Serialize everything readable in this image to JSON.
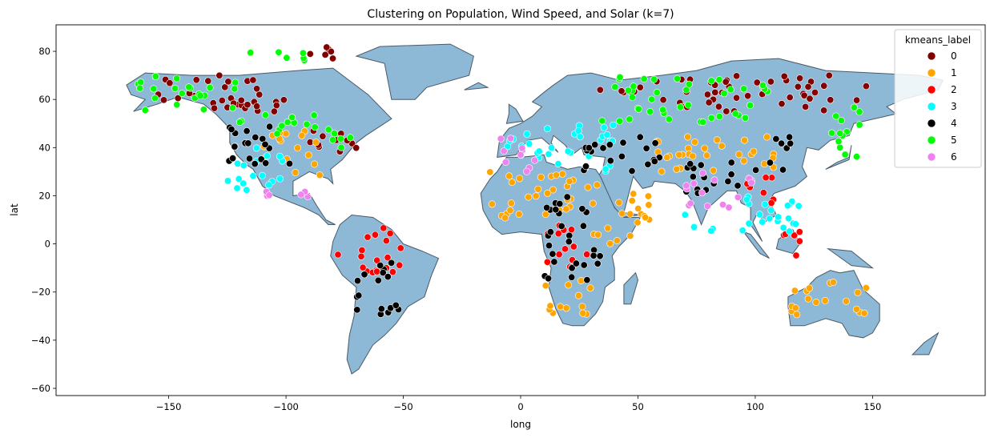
{
  "chart_data": {
    "type": "scatter",
    "title": "Clustering on Population, Wind Speed, and Solar (k=7)",
    "xlabel": "long",
    "ylabel": "lat",
    "xlim": [
      -198,
      198
    ],
    "ylim": [
      -63,
      91
    ],
    "xticks": [
      -150,
      -100,
      -50,
      0,
      50,
      100,
      150
    ],
    "yticks": [
      -60,
      -40,
      -20,
      0,
      20,
      40,
      60,
      80
    ],
    "grid": false,
    "legend": {
      "title": "kmeans_label",
      "placement": "top-right"
    },
    "map_fill": "#8db8d6",
    "map_edge": "#4a5a68",
    "clusters": [
      {
        "name": "0",
        "color": "#800000",
        "regions": [
          [
            -160,
            -110,
            55,
            70
          ],
          [
            -125,
            -95,
            55,
            65
          ],
          [
            -90,
            -75,
            75,
            82
          ],
          [
            -90,
            -70,
            32,
            48
          ],
          [
            60,
            150,
            55,
            70
          ],
          [
            30,
            60,
            60,
            68
          ]
        ]
      },
      {
        "name": "1",
        "color": "#ffa500",
        "regions": [
          [
            -110,
            -85,
            28,
            47
          ],
          [
            -15,
            30,
            10,
            30
          ],
          [
            30,
            55,
            0,
            25
          ],
          [
            10,
            35,
            -30,
            -15
          ],
          [
            115,
            150,
            -30,
            -15
          ],
          [
            50,
            110,
            30,
            45
          ]
        ]
      },
      {
        "name": "2",
        "color": "#ff0000",
        "regions": [
          [
            -78,
            -50,
            -12,
            8
          ],
          [
            10,
            30,
            -10,
            8
          ],
          [
            95,
            110,
            15,
            30
          ],
          [
            110,
            120,
            -5,
            5
          ]
        ]
      },
      {
        "name": "3",
        "color": "#00ffff",
        "regions": [
          [
            -125,
            -100,
            20,
            40
          ],
          [
            -10,
            40,
            30,
            50
          ],
          [
            70,
            120,
            5,
            20
          ]
        ]
      },
      {
        "name": "4",
        "color": "#000000",
        "regions": [
          [
            -125,
            -95,
            30,
            50
          ],
          [
            -70,
            -50,
            -30,
            -5
          ],
          [
            10,
            35,
            -15,
            10
          ],
          [
            20,
            60,
            30,
            45
          ],
          [
            70,
            100,
            20,
            35
          ],
          [
            100,
            115,
            30,
            45
          ],
          [
            -5,
            30,
            12,
            20
          ]
        ]
      },
      {
        "name": "5",
        "color": "#00ff00",
        "regions": [
          [
            -165,
            -120,
            55,
            70
          ],
          [
            -120,
            -85,
            45,
            55
          ],
          [
            -85,
            -70,
            38,
            48
          ],
          [
            40,
            110,
            60,
            70
          ],
          [
            30,
            100,
            50,
            58
          ],
          [
            130,
            145,
            35,
            60
          ],
          [
            -120,
            -90,
            76,
            80
          ]
        ]
      },
      {
        "name": "6",
        "color": "#ee82ee",
        "regions": [
          [
            -110,
            -90,
            18,
            25
          ],
          [
            70,
            100,
            15,
            30
          ],
          [
            -10,
            10,
            30,
            45
          ]
        ]
      }
    ]
  }
}
